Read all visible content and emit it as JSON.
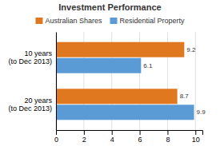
{
  "chart_data": {
    "type": "bar",
    "orientation": "horizontal",
    "title": "Investment Performance",
    "categories": [
      "20 years\n(to Dec 2013)",
      "10 years\n(to Dec 2013)"
    ],
    "series": [
      {
        "name": "Australian Shares",
        "values": [
          8.7,
          9.2
        ],
        "color": "#E07820"
      },
      {
        "name": "Residential Property",
        "values": [
          9.9,
          6.1
        ],
        "color": "#5B9BD5"
      }
    ],
    "xlim": [
      0,
      10.5
    ],
    "xticks": [
      0,
      2,
      4,
      6,
      8,
      10
    ],
    "grid": true,
    "legend": "top",
    "data_labels": true
  }
}
